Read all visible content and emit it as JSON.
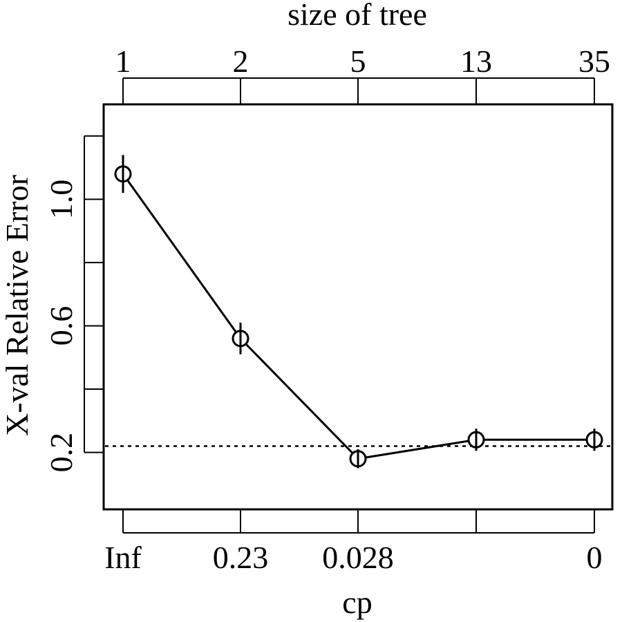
{
  "chart_data": {
    "type": "line",
    "title_top": "size of tree",
    "xlabel": "cp",
    "ylabel": "X-val Relative Error",
    "top_tick_labels": [
      "1",
      "2",
      "5",
      "13",
      "35"
    ],
    "bottom_tick_labels": [
      "Inf",
      "0.23",
      "0.028",
      "",
      "0"
    ],
    "y_ticks": [
      0.2,
      0.4,
      0.6,
      0.8,
      1.0,
      1.2
    ],
    "y_tick_labels": [
      "0.2",
      "",
      "0.6",
      "",
      "1.0",
      ""
    ],
    "ylim": [
      0.02,
      1.3
    ],
    "x": [
      1,
      2,
      3,
      4,
      5
    ],
    "values": [
      1.08,
      0.56,
      0.18,
      0.24,
      0.24
    ],
    "errors": [
      0.06,
      0.05,
      0.03,
      0.035,
      0.035
    ],
    "reference_line": 0.22,
    "colors": {
      "line": "#000000",
      "background": "#ffffff"
    }
  }
}
